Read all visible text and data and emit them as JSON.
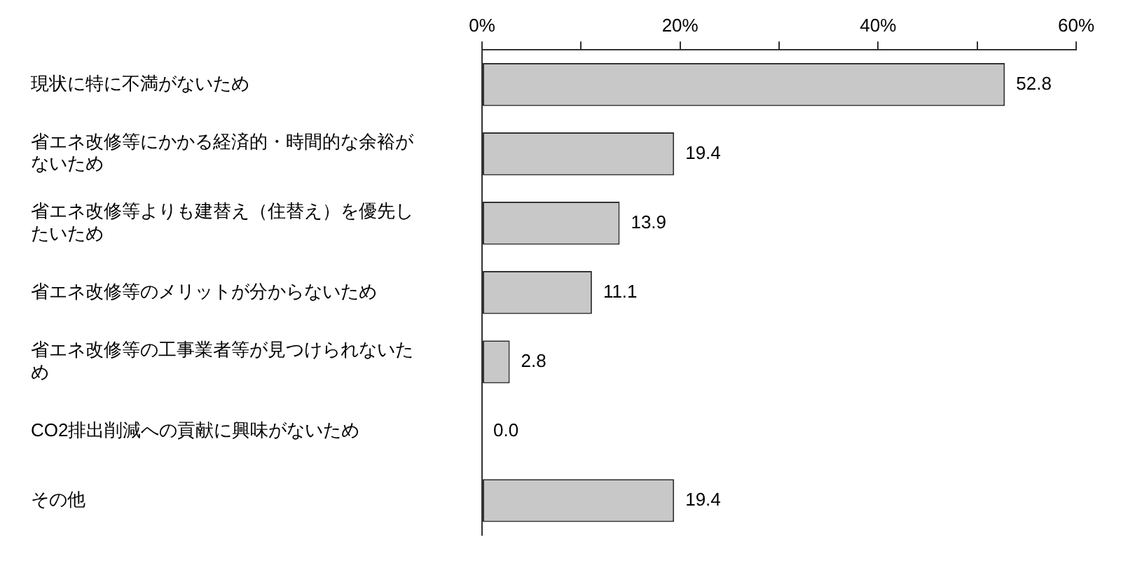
{
  "chart_data": {
    "type": "bar",
    "orientation": "horizontal",
    "categories": [
      "現状に特に不満がないため",
      "省エネ改修等にかかる経済的・時間的な余裕がないため",
      "省エネ改修等よりも建替え（住替え）を優先したいため",
      "省エネ改修等のメリットが分からないため",
      "省エネ改修等の工事業者等が見つけられないため",
      "CO2排出削減への貢献に興味がないため",
      "その他"
    ],
    "values": [
      52.8,
      19.4,
      13.9,
      11.1,
      2.8,
      0.0,
      19.4
    ],
    "value_labels": [
      "52.8",
      "19.4",
      "13.9",
      "11.1",
      "2.8",
      "0.0",
      "19.4"
    ],
    "color": "#c8c8c8",
    "xlim": [
      0,
      60
    ],
    "xticks": [
      {
        "value": 0,
        "label": "0%"
      },
      {
        "value": 10,
        "label": null
      },
      {
        "value": 20,
        "label": "20%"
      },
      {
        "value": 30,
        "label": null
      },
      {
        "value": 40,
        "label": "40%"
      },
      {
        "value": 50,
        "label": null
      },
      {
        "value": 60,
        "label": "60%"
      }
    ],
    "grid": false,
    "legend": false
  }
}
